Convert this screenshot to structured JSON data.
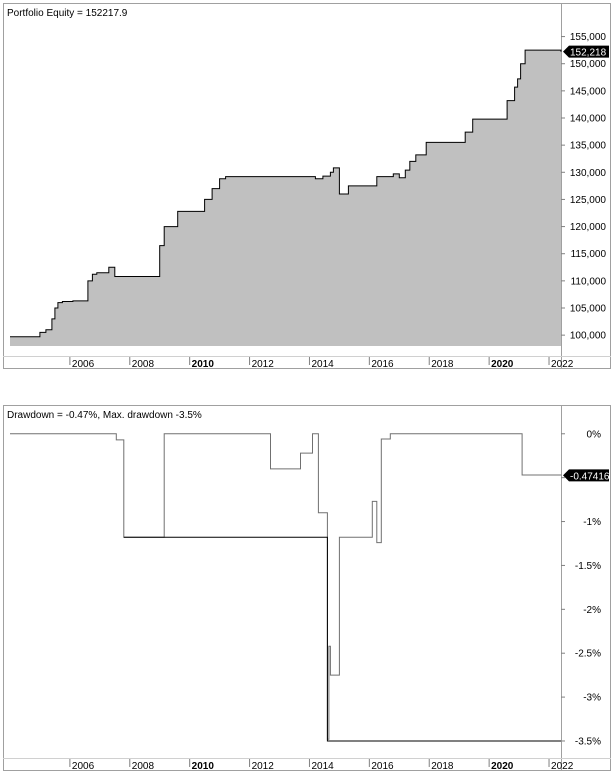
{
  "chart_data": [
    {
      "type": "area",
      "title": "Portfolio Equity = 152217.9",
      "last_value_label": "152,218",
      "ylim": [
        98000,
        157500
      ],
      "yticks": [
        {
          "v": 100000,
          "label": "100,000"
        },
        {
          "v": 105000,
          "label": "105,000"
        },
        {
          "v": 110000,
          "label": "110,000"
        },
        {
          "v": 115000,
          "label": "115,000"
        },
        {
          "v": 120000,
          "label": "120,000"
        },
        {
          "v": 125000,
          "label": "125,000"
        },
        {
          "v": 130000,
          "label": "130,000"
        },
        {
          "v": 135000,
          "label": "135,000"
        },
        {
          "v": 140000,
          "label": "140,000"
        },
        {
          "v": 145000,
          "label": "145,000"
        },
        {
          "v": 150000,
          "label": "150,000"
        },
        {
          "v": 155000,
          "label": "155,000"
        }
      ],
      "xlim": [
        2004.0,
        2022.4
      ],
      "xticks": [
        {
          "v": 2006,
          "label": "2006",
          "bold": false
        },
        {
          "v": 2008,
          "label": "2008",
          "bold": false
        },
        {
          "v": 2010,
          "label": "2010",
          "bold": true
        },
        {
          "v": 2012,
          "label": "2012",
          "bold": false
        },
        {
          "v": 2014,
          "label": "2014",
          "bold": false
        },
        {
          "v": 2016,
          "label": "2016",
          "bold": false
        },
        {
          "v": 2018,
          "label": "2018",
          "bold": false
        },
        {
          "v": 2020,
          "label": "2020",
          "bold": true
        },
        {
          "v": 2022,
          "label": "2022",
          "bold": false
        }
      ],
      "grid": false,
      "series": [
        {
          "color": "#000000",
          "fill": "#c0c0c0",
          "x": [
            2004.0,
            2004.85,
            2005.0,
            2005.2,
            2005.4,
            2005.5,
            2005.6,
            2005.75,
            2006.1,
            2006.6,
            2006.75,
            2006.9,
            2007.1,
            2007.3,
            2007.5,
            2007.8,
            2009.0,
            2009.15,
            2009.6,
            2010.3,
            2010.5,
            2010.75,
            2011.0,
            2011.2,
            2012.7,
            2014.2,
            2014.45,
            2014.7,
            2014.8,
            2015.0,
            2015.3,
            2016.25,
            2016.4,
            2016.8,
            2017.0,
            2017.2,
            2017.35,
            2017.55,
            2017.9,
            2019.2,
            2019.45,
            2020.6,
            2020.85,
            2020.95,
            2021.05,
            2021.2,
            2022.4
          ],
          "y": [
            99700,
            99700,
            100500,
            101000,
            103000,
            105000,
            106000,
            106200,
            106300,
            110000,
            111200,
            111500,
            111500,
            112500,
            110800,
            110800,
            116500,
            120000,
            122800,
            122800,
            125000,
            127000,
            128800,
            129200,
            129200,
            128800,
            129300,
            130000,
            130800,
            126000,
            127500,
            129200,
            129200,
            129700,
            129000,
            130400,
            132000,
            133200,
            135500,
            137400,
            139800,
            143200,
            145700,
            147200,
            150000,
            152500,
            152217.9
          ]
        }
      ]
    },
    {
      "type": "area",
      "title": "Drawdown = -0.47%, Max. drawdown -3.5%",
      "last_value_label": "-0.47416",
      "ylim": [
        -3.58,
        0.1
      ],
      "yticks": [
        {
          "v": 0,
          "label": "0%"
        },
        {
          "v": -0.5,
          "label": "-0.5%"
        },
        {
          "v": -1,
          "label": "-1%"
        },
        {
          "v": -1.5,
          "label": "-1.5%"
        },
        {
          "v": -2,
          "label": "-2%"
        },
        {
          "v": -2.5,
          "label": "-2.5%"
        },
        {
          "v": -3,
          "label": "-3%"
        },
        {
          "v": -3.5,
          "label": "-3.5%"
        }
      ],
      "xlim": [
        2004.0,
        2022.4
      ],
      "xticks": [
        {
          "v": 2006,
          "label": "2006",
          "bold": false
        },
        {
          "v": 2008,
          "label": "2008",
          "bold": false
        },
        {
          "v": 2010,
          "label": "2010",
          "bold": true
        },
        {
          "v": 2012,
          "label": "2012",
          "bold": false
        },
        {
          "v": 2014,
          "label": "2014",
          "bold": false
        },
        {
          "v": 2016,
          "label": "2016",
          "bold": false
        },
        {
          "v": 2018,
          "label": "2018",
          "bold": false
        },
        {
          "v": 2020,
          "label": "2020",
          "bold": true
        },
        {
          "v": 2022,
          "label": "2022",
          "bold": false
        }
      ],
      "grid": false,
      "series": [
        {
          "name": "Drawdown",
          "color": "#707070",
          "x": [
            2004.0,
            2007.35,
            2007.55,
            2007.8,
            2009.15,
            2012.7,
            2013.7,
            2014.1,
            2014.3,
            2014.6,
            2014.65,
            2014.7,
            2014.8,
            2015.0,
            2015.25,
            2016.1,
            2016.25,
            2016.4,
            2016.7,
            2021.1,
            2022.4
          ],
          "y": [
            0,
            0,
            -0.07,
            -1.18,
            0,
            -0.4,
            -0.22,
            0,
            -0.9,
            -3.48,
            -2.42,
            -2.75,
            -2.75,
            -1.18,
            -1.18,
            -0.77,
            -1.24,
            -0.06,
            0,
            -0.47,
            -0.474
          ]
        },
        {
          "name": "Max. drawdown",
          "color": "#000000",
          "x": [
            2007.8,
            2014.6,
            2014.6,
            2022.4
          ],
          "y": [
            -1.18,
            -1.18,
            -3.5,
            -3.5
          ]
        }
      ]
    }
  ]
}
